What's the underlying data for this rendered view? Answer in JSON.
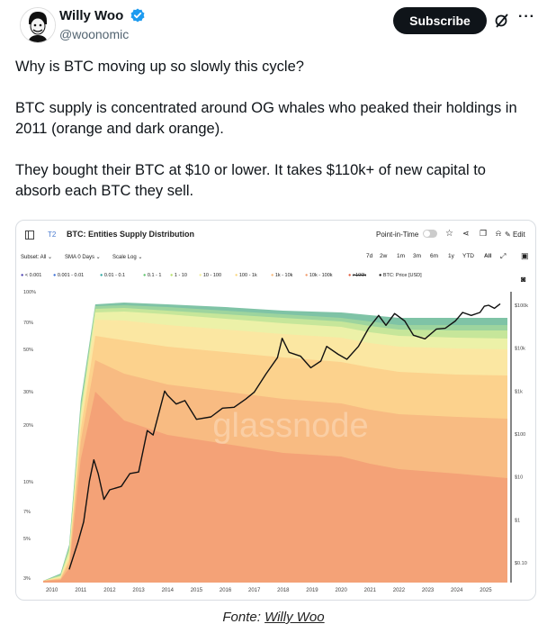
{
  "author": {
    "name": "Willy Woo",
    "handle": "@woonomic"
  },
  "actions": {
    "subscribe_label": "Subscribe",
    "more_label": "···"
  },
  "tweet": {
    "para1": "Why is BTC moving up so slowly this cycle?",
    "para2": "BTC supply is concentrated around OG whales who peaked their holdings in 2011 (orange and dark orange).",
    "para3": "They bought their BTC at $10 or lower. It takes $110k+ of new capital to absorb each BTC they sell."
  },
  "chart_card": {
    "tab_code": "T2",
    "title": "BTC: Entities Supply Distribution",
    "point_in_time": "Point-in-Time",
    "edit_label": "Edit",
    "subset": "Subset: All",
    "sma": "SMA 0 Days",
    "scale": "Scale Log",
    "ranges": [
      "7d",
      "2w",
      "1m",
      "3m",
      "6m",
      "1y",
      "YTD",
      "All"
    ],
    "active_range": "All",
    "watermark": "glassnode"
  },
  "chart_data": {
    "type": "area",
    "title": "BTC: Entities Supply Distribution",
    "legend": [
      {
        "name": "< 0.001",
        "color": "#4b3fb0"
      },
      {
        "name": "0.001 - 0.01",
        "color": "#3b6fd6"
      },
      {
        "name": "0.01 - 0.1",
        "color": "#2aa6a0"
      },
      {
        "name": "0.1 - 1",
        "color": "#5cc46a"
      },
      {
        "name": "1 - 10",
        "color": "#b7e06a"
      },
      {
        "name": "10 - 100",
        "color": "#f1ee9a"
      },
      {
        "name": "100 - 1k",
        "color": "#fbd77e"
      },
      {
        "name": "1k - 10k",
        "color": "#f8b87a"
      },
      {
        "name": "10k - 100k",
        "color": "#f29a6a"
      },
      {
        "name": ">100k",
        "color": "#e25a3c"
      },
      {
        "name": "BTC: Price [USD]",
        "color": "#111111"
      }
    ],
    "x_ticks": [
      "2010",
      "2011",
      "2012",
      "2013",
      "2014",
      "2015",
      "2016",
      "2017",
      "2018",
      "2019",
      "2020",
      "2021",
      "2022",
      "2023",
      "2024",
      "2025"
    ],
    "y_left_ticks": [
      "100%",
      "70%",
      "50%",
      "30%",
      "20%",
      "10%",
      "7%",
      "5%",
      "3%"
    ],
    "y_right_ticks": [
      "$100k",
      "$10k",
      "$1k",
      "$100",
      "$10",
      "$1",
      "$0.10"
    ],
    "y_right_scale": "log",
    "price_series": {
      "name": "BTC: Price [USD]",
      "x": [
        2010.6,
        2010.9,
        2011.1,
        2011.3,
        2011.45,
        2011.6,
        2011.8,
        2012.0,
        2012.4,
        2012.7,
        2013.0,
        2013.3,
        2013.5,
        2013.9,
        2014.0,
        2014.3,
        2014.6,
        2015.0,
        2015.5,
        2015.9,
        2016.3,
        2016.7,
        2017.0,
        2017.4,
        2017.8,
        2017.96,
        2018.2,
        2018.6,
        2018.95,
        2019.3,
        2019.5,
        2019.9,
        2020.2,
        2020.6,
        2020.95,
        2021.3,
        2021.55,
        2021.85,
        2022.2,
        2022.5,
        2022.9,
        2023.3,
        2023.6,
        2023.95,
        2024.2,
        2024.5,
        2024.8,
        2024.95,
        2025.1,
        2025.3,
        2025.5
      ],
      "y": [
        0.07,
        0.3,
        0.9,
        8,
        25,
        12,
        3,
        5,
        6,
        12,
        13,
        120,
        95,
        1000,
        800,
        500,
        600,
        220,
        250,
        400,
        420,
        650,
        950,
        2500,
        6000,
        17000,
        8000,
        6500,
        3500,
        5000,
        11000,
        7200,
        5500,
        11000,
        29000,
        58000,
        34000,
        64000,
        43000,
        20000,
        16500,
        28000,
        29000,
        43000,
        68000,
        58000,
        68000,
        95000,
        100000,
        85000,
        108000
      ]
    }
  }
}
